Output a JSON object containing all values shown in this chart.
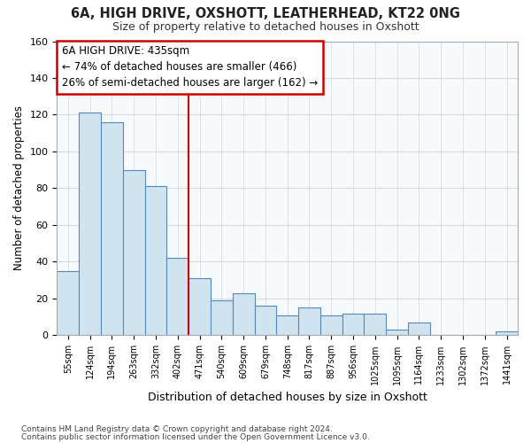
{
  "title1": "6A, HIGH DRIVE, OXSHOTT, LEATHERHEAD, KT22 0NG",
  "title2": "Size of property relative to detached houses in Oxshott",
  "xlabel": "Distribution of detached houses by size in Oxshott",
  "ylabel": "Number of detached properties",
  "categories": [
    "55sqm",
    "124sqm",
    "194sqm",
    "263sqm",
    "332sqm",
    "402sqm",
    "471sqm",
    "540sqm",
    "609sqm",
    "679sqm",
    "748sqm",
    "817sqm",
    "887sqm",
    "956sqm",
    "1025sqm",
    "1095sqm",
    "1164sqm",
    "1233sqm",
    "1302sqm",
    "1372sqm",
    "1441sqm"
  ],
  "values": [
    35,
    121,
    116,
    90,
    81,
    42,
    31,
    19,
    23,
    16,
    11,
    15,
    11,
    12,
    12,
    3,
    7,
    0,
    0,
    0,
    2
  ],
  "bar_color": "#d0e4f0",
  "bar_edge_color": "#5588bb",
  "grid_color": "#d0d8e0",
  "annotation_text": "6A HIGH DRIVE: 435sqm\n← 74% of detached houses are smaller (466)\n26% of semi-detached houses are larger (162) →",
  "annotation_box_color": "#ffffff",
  "annotation_border_color": "#cc0000",
  "vline_color": "#cc0000",
  "vline_x_index": 5.5,
  "ylim": [
    0,
    160
  ],
  "yticks": [
    0,
    20,
    40,
    60,
    80,
    100,
    120,
    140,
    160
  ],
  "footer1": "Contains HM Land Registry data © Crown copyright and database right 2024.",
  "footer2": "Contains public sector information licensed under the Open Government Licence v3.0.",
  "bg_color": "#ffffff",
  "plot_bg_color": "#f7f9fb"
}
